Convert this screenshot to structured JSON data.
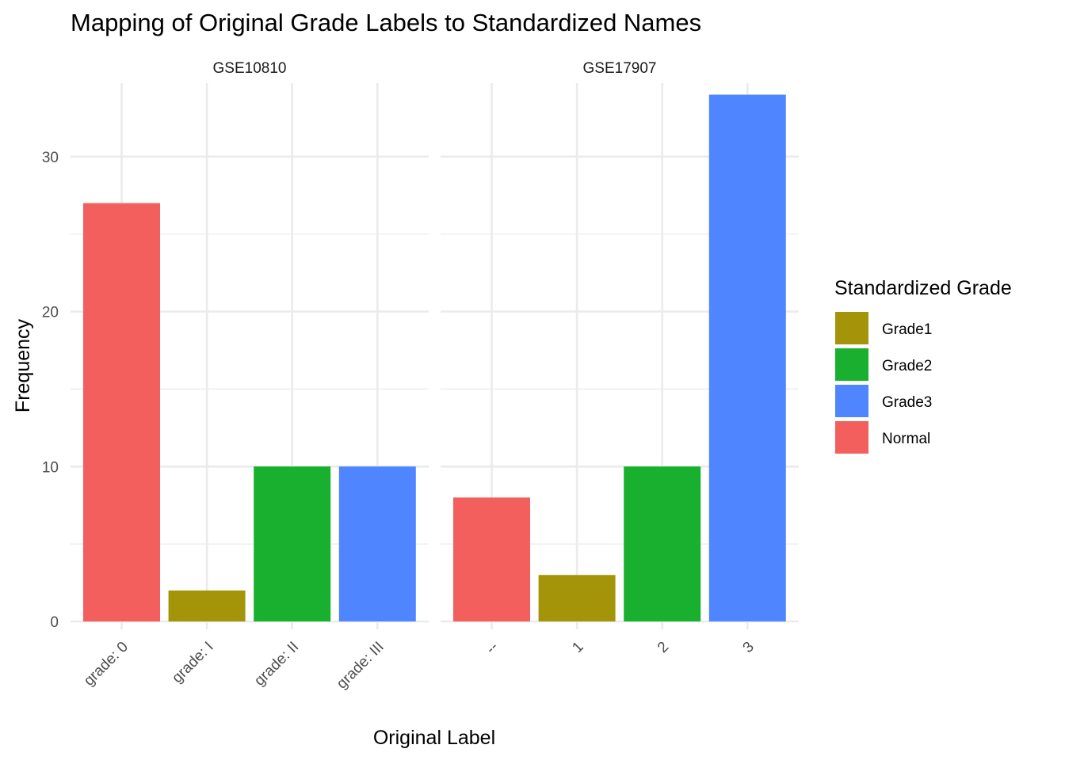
{
  "chart_data": {
    "type": "bar",
    "title": "Mapping of Original Grade Labels to Standardized Names",
    "xlabel": "Original Label",
    "ylabel": "Frequency",
    "ylim": [
      0,
      35
    ],
    "yticks": [
      0,
      10,
      20,
      30
    ],
    "legend": {
      "title": "Standardized Grade",
      "position": "right",
      "entries": [
        {
          "name": "Grade1",
          "color": "#a3940a"
        },
        {
          "name": "Grade2",
          "color": "#1ab02f"
        },
        {
          "name": "Grade3",
          "color": "#4f86ff"
        },
        {
          "name": "Normal",
          "color": "#f25f5c"
        }
      ]
    },
    "panels": [
      {
        "name": "GSE10810",
        "categories": [
          "grade: 0",
          "grade: I",
          "grade: II",
          "grade: III"
        ],
        "values": [
          27,
          2,
          10,
          10
        ],
        "groups": [
          "Normal",
          "Grade1",
          "Grade2",
          "Grade3"
        ]
      },
      {
        "name": "GSE17907",
        "categories": [
          "--",
          "1",
          "2",
          "3"
        ],
        "values": [
          8,
          3,
          10,
          34
        ],
        "groups": [
          "Normal",
          "Grade1",
          "Grade2",
          "Grade3"
        ]
      }
    ]
  }
}
